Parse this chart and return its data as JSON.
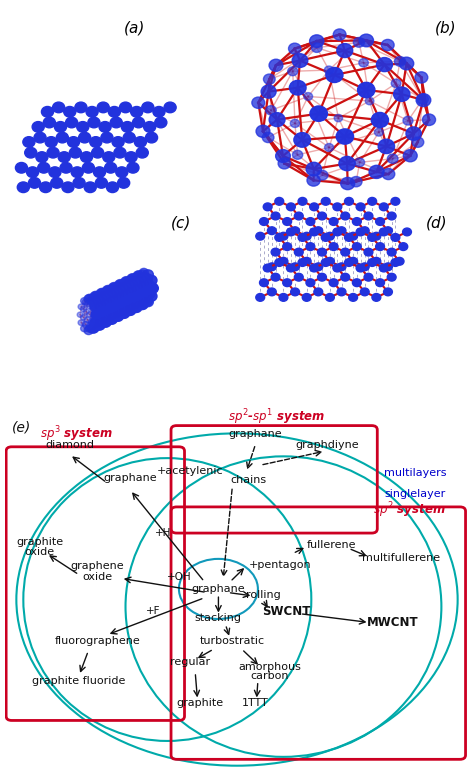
{
  "fig_bg": "#ffffff",
  "top_bg": "#dce6f0",
  "labels_top": [
    "(a)",
    "(b)",
    "(c)",
    "(d)"
  ],
  "label_e": "(e)",
  "sp3_label": "$sp^3$ system",
  "sp2sp1_label": "$sp^2$-$sp^1$ system",
  "sp2_label": "$sp^2$ system",
  "singlelayer_label": "singlelayer",
  "multilayers_label": "multilayers",
  "red_color": "#cc0022",
  "teal_color": "#00aaaa",
  "blue_label_color": "#0000cc",
  "black": "#111111",
  "atom_color": "#2233dd",
  "bond_color": "#cc1111"
}
